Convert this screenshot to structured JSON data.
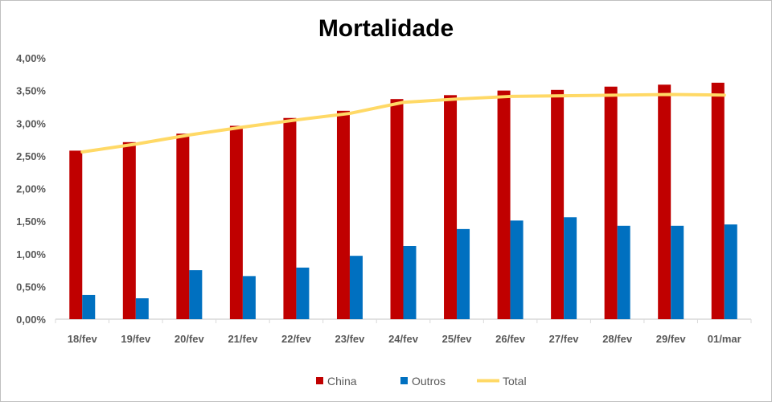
{
  "chart_data": {
    "type": "bar",
    "title": "Mortalidade",
    "categories": [
      "18/fev",
      "19/fev",
      "20/fev",
      "21/fev",
      "22/fev",
      "23/fev",
      "24/fev",
      "25/fev",
      "26/fev",
      "27/fev",
      "28/fev",
      "29/fev",
      "01/mar"
    ],
    "series": [
      {
        "name": "China",
        "kind": "bar",
        "color": "#c00000",
        "values": [
          2.58,
          2.71,
          2.84,
          2.96,
          3.08,
          3.19,
          3.37,
          3.43,
          3.5,
          3.51,
          3.56,
          3.59,
          3.62
        ]
      },
      {
        "name": "Outros",
        "kind": "bar",
        "color": "#0070c0",
        "values": [
          0.37,
          0.32,
          0.75,
          0.66,
          0.79,
          0.97,
          1.12,
          1.38,
          1.51,
          1.56,
          1.43,
          1.43,
          1.45
        ]
      },
      {
        "name": "Total",
        "kind": "line",
        "color": "#ffd966",
        "values": [
          2.56,
          2.68,
          2.82,
          2.94,
          3.05,
          3.15,
          3.32,
          3.37,
          3.41,
          3.42,
          3.43,
          3.44,
          3.43
        ]
      }
    ],
    "yticks": [
      "0,00%",
      "0,50%",
      "1,00%",
      "1,50%",
      "2,00%",
      "2,50%",
      "3,00%",
      "3,50%",
      "4,00%"
    ],
    "ylim": [
      0,
      4
    ],
    "yunit": "%",
    "xlabel": "",
    "ylabel": "",
    "grid": false,
    "legend": "bottom"
  }
}
